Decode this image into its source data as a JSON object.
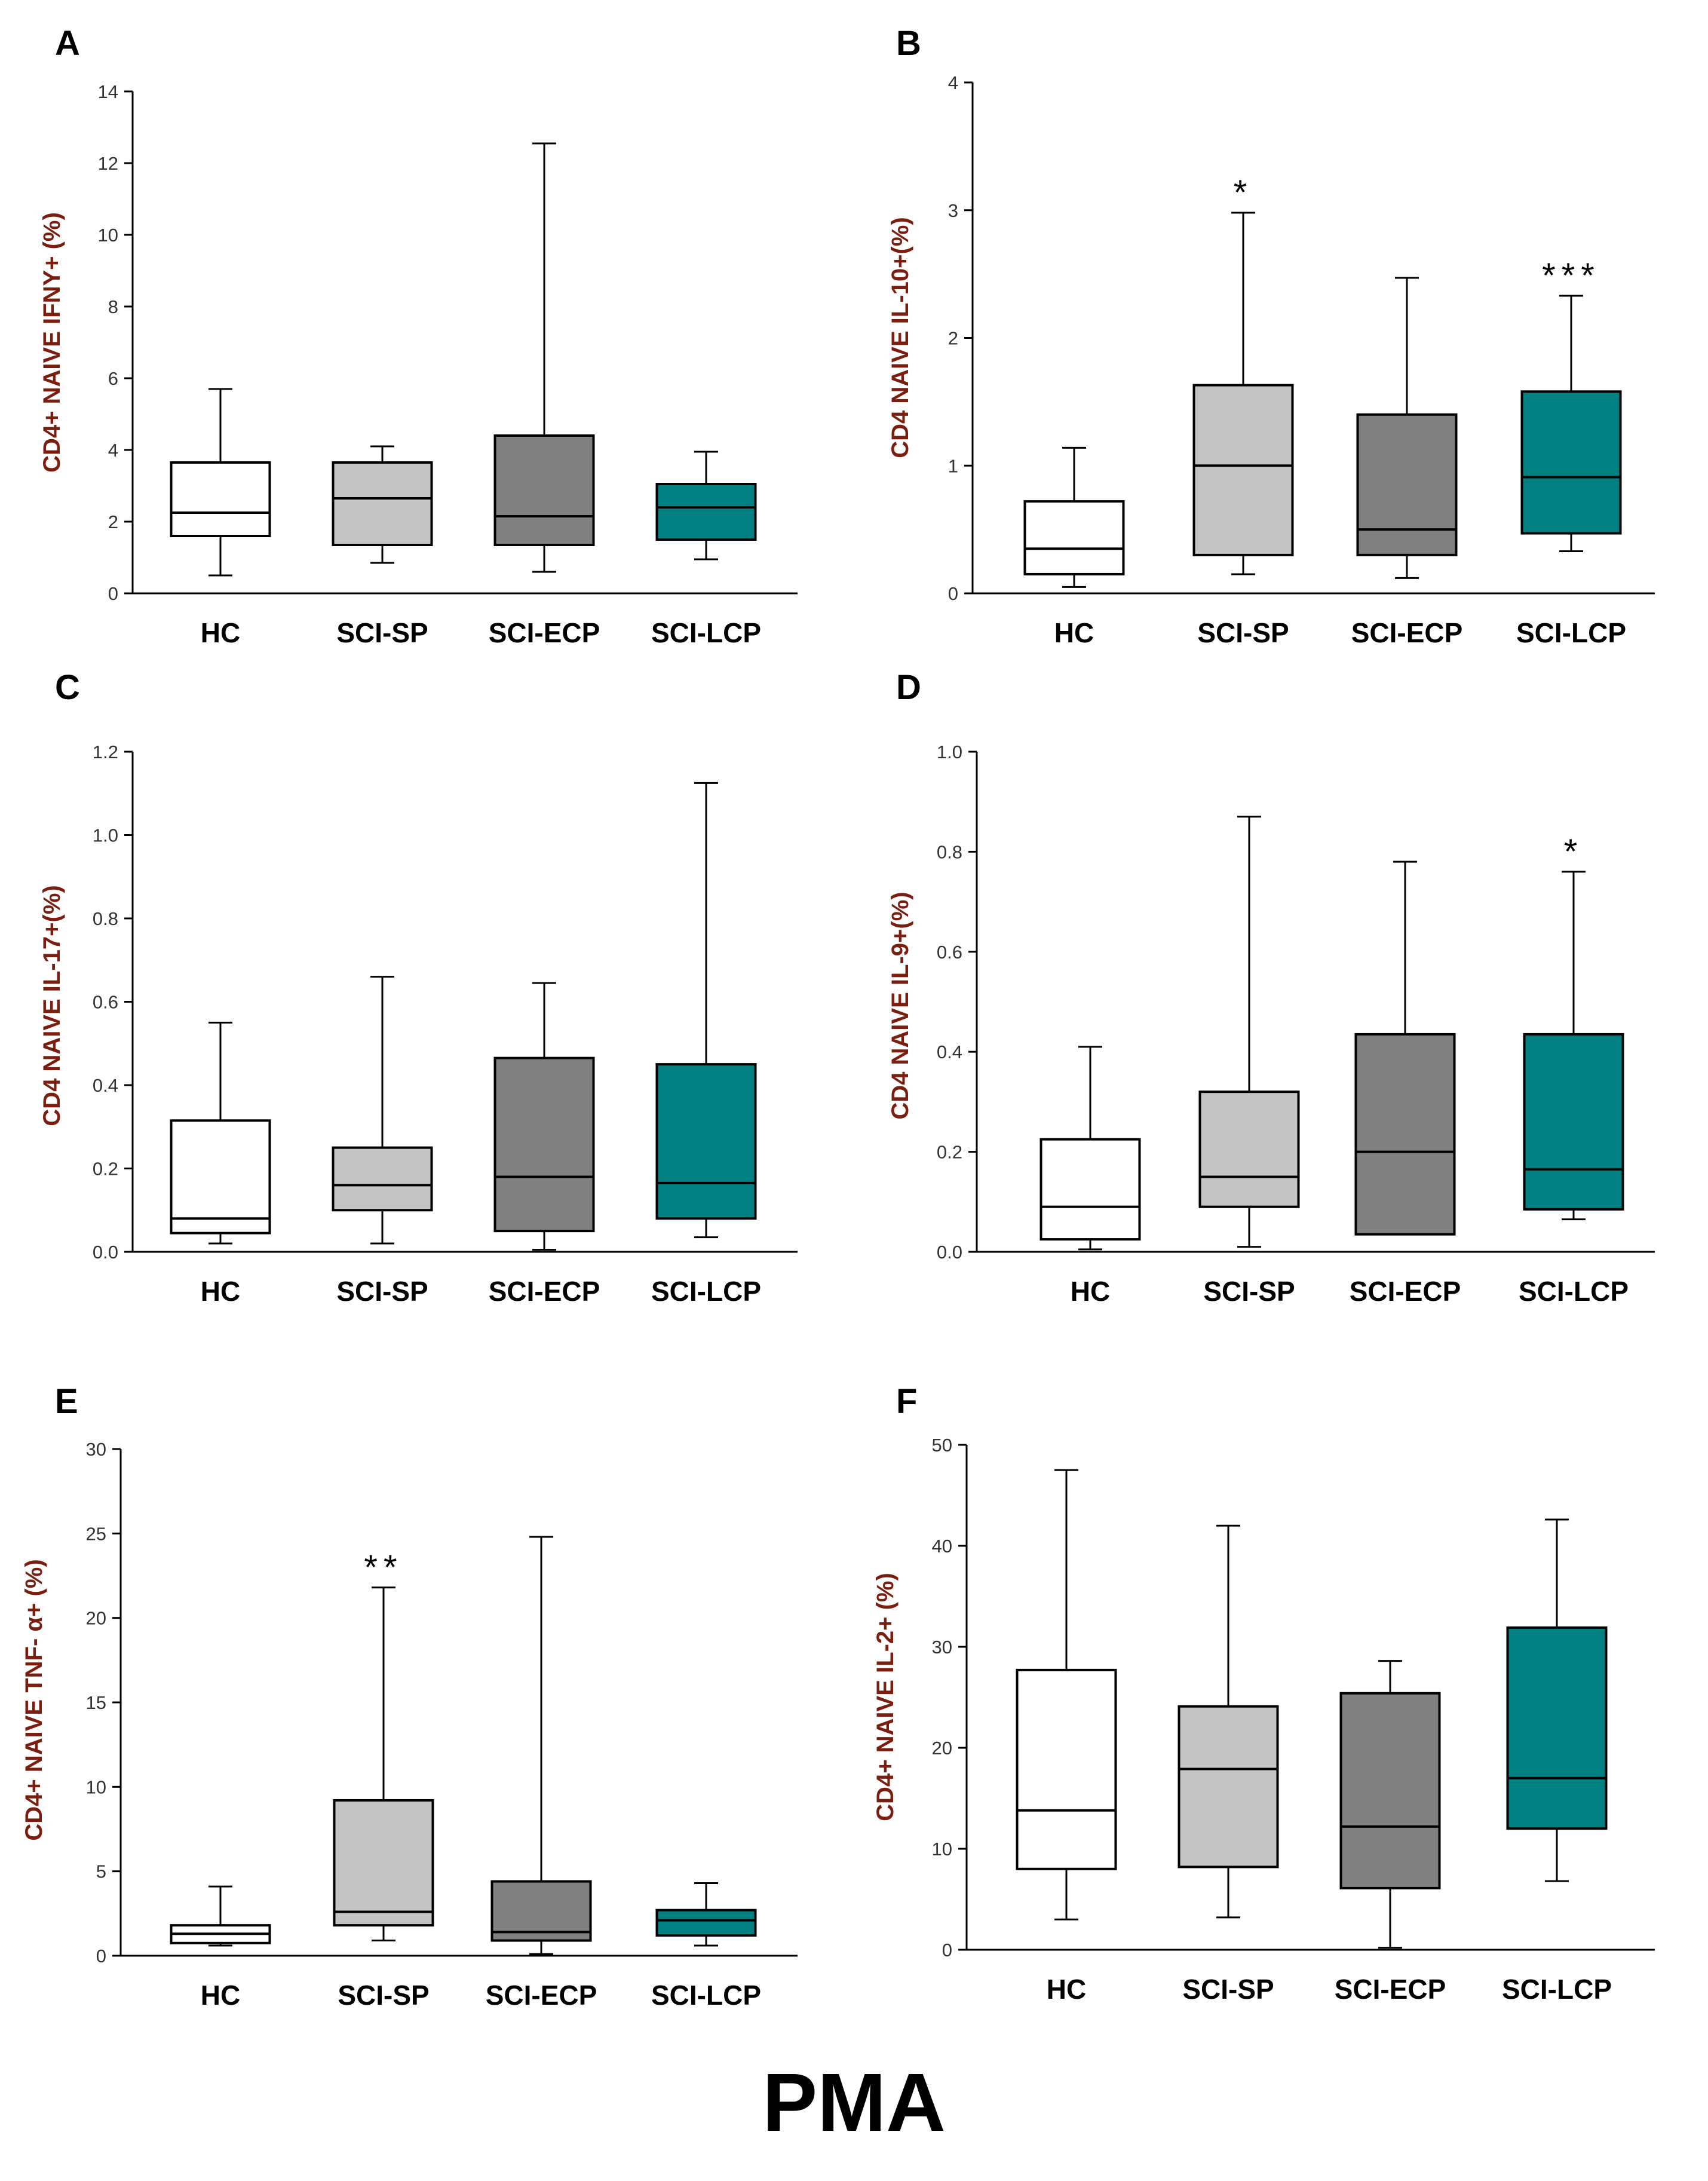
{
  "figure_title": "PMA",
  "colors": {
    "HC": "#ffffff",
    "SCI-SP": "#c4c4c4",
    "SCI-ECP": "#808080",
    "SCI-LCP": "#008080",
    "ylabel": "#7a1f10",
    "tick_label": "#333333",
    "stroke": "#000000"
  },
  "chart_data": [
    {
      "panel": "A",
      "type": "box",
      "ylabel": "CD4+ NAIVE IFNY+ (%)",
      "ylim": [
        0,
        14
      ],
      "yticks": [
        "0",
        "2",
        "4",
        "6",
        "8",
        "10",
        "12",
        "14"
      ],
      "categories": [
        "HC",
        "SCI-SP",
        "SCI-ECP",
        "SCI-LCP"
      ],
      "boxes": [
        {
          "min": 0.5,
          "q1": 1.6,
          "median": 2.25,
          "q3": 3.65,
          "max": 5.7
        },
        {
          "min": 0.85,
          "q1": 1.35,
          "median": 2.65,
          "q3": 3.65,
          "max": 4.1
        },
        {
          "min": 0.6,
          "q1": 1.35,
          "median": 2.15,
          "q3": 4.4,
          "max": 12.55
        },
        {
          "min": 0.95,
          "q1": 1.5,
          "median": 2.4,
          "q3": 3.05,
          "max": 3.95
        }
      ],
      "annotations": [
        "",
        "",
        "",
        ""
      ]
    },
    {
      "panel": "B",
      "type": "box",
      "ylabel": "CD4 NAIVE IL-10+(%)",
      "ylim": [
        0,
        4
      ],
      "yticks": [
        "0",
        "1",
        "2",
        "3",
        "4"
      ],
      "categories": [
        "HC",
        "SCI-SP",
        "SCI-ECP",
        "SCI-LCP"
      ],
      "boxes": [
        {
          "min": 0.05,
          "q1": 0.15,
          "median": 0.35,
          "q3": 0.72,
          "max": 1.14
        },
        {
          "min": 0.15,
          "q1": 0.3,
          "median": 1.0,
          "q3": 1.63,
          "max": 2.98
        },
        {
          "min": 0.12,
          "q1": 0.3,
          "median": 0.5,
          "q3": 1.4,
          "max": 2.47
        },
        {
          "min": 0.33,
          "q1": 0.47,
          "median": 0.91,
          "q3": 1.58,
          "max": 2.33
        }
      ],
      "annotations": [
        "",
        "*",
        "",
        "***"
      ]
    },
    {
      "panel": "C",
      "type": "box",
      "ylabel": "CD4 NAIVE IL-17+(%)",
      "ylim": [
        0,
        1.2
      ],
      "yticks": [
        "0.0",
        "0.2",
        "0.4",
        "0.6",
        "0.8",
        "1.0",
        "1.2"
      ],
      "categories": [
        "HC",
        "SCI-SP",
        "SCI-ECP",
        "SCI-LCP"
      ],
      "boxes": [
        {
          "min": 0.02,
          "q1": 0.045,
          "median": 0.08,
          "q3": 0.315,
          "max": 0.55
        },
        {
          "min": 0.02,
          "q1": 0.1,
          "median": 0.16,
          "q3": 0.25,
          "max": 0.66
        },
        {
          "min": 0.005,
          "q1": 0.05,
          "median": 0.18,
          "q3": 0.465,
          "max": 0.645
        },
        {
          "min": 0.035,
          "q1": 0.08,
          "median": 0.165,
          "q3": 0.45,
          "max": 1.125
        }
      ],
      "annotations": [
        "",
        "",
        "",
        ""
      ]
    },
    {
      "panel": "D",
      "type": "box",
      "ylabel": "CD4 NAIVE IL-9+(%)",
      "ylim": [
        0,
        1.0
      ],
      "yticks": [
        "0.0",
        "0.2",
        "0.4",
        "0.6",
        "0.8",
        "1.0"
      ],
      "categories": [
        "HC",
        "SCI-SP",
        "SCI-ECP",
        "SCI-LCP"
      ],
      "boxes": [
        {
          "min": 0.005,
          "q1": 0.025,
          "median": 0.09,
          "q3": 0.225,
          "max": 0.41
        },
        {
          "min": 0.01,
          "q1": 0.09,
          "median": 0.15,
          "q3": 0.32,
          "max": 0.87
        },
        {
          "min": 0.035,
          "q1": 0.035,
          "median": 0.2,
          "q3": 0.435,
          "max": 0.78
        },
        {
          "min": 0.065,
          "q1": 0.085,
          "median": 0.165,
          "q3": 0.435,
          "max": 0.76
        }
      ],
      "annotations": [
        "",
        "",
        "",
        "*"
      ]
    },
    {
      "panel": "E",
      "type": "box",
      "ylabel": "CD4+ NAIVE TNF- α+ (%)",
      "ylim": [
        0,
        30
      ],
      "yticks": [
        "0",
        "5",
        "10",
        "15",
        "20",
        "25",
        "30"
      ],
      "categories": [
        "HC",
        "SCI-SP",
        "SCI-ECP",
        "SCI-LCP"
      ],
      "boxes": [
        {
          "min": 0.6,
          "q1": 0.75,
          "median": 1.3,
          "q3": 1.8,
          "max": 4.1
        },
        {
          "min": 0.9,
          "q1": 1.8,
          "median": 2.6,
          "q3": 9.2,
          "max": 21.8
        },
        {
          "min": 0.1,
          "q1": 0.9,
          "median": 1.4,
          "q3": 4.4,
          "max": 24.8
        },
        {
          "min": 0.6,
          "q1": 1.2,
          "median": 2.1,
          "q3": 2.7,
          "max": 4.3
        }
      ],
      "annotations": [
        "",
        "**",
        "",
        ""
      ]
    },
    {
      "panel": "F",
      "type": "box",
      "ylabel": "CD4+ NAIVE IL-2+ (%)",
      "ylim": [
        0,
        50
      ],
      "yticks": [
        "0",
        "10",
        "20",
        "30",
        "40",
        "50"
      ],
      "categories": [
        "HC",
        "SCI-SP",
        "SCI-ECP",
        "SCI-LCP"
      ],
      "boxes": [
        {
          "min": 3.0,
          "q1": 8.0,
          "median": 13.8,
          "q3": 27.7,
          "max": 47.5
        },
        {
          "min": 3.2,
          "q1": 8.2,
          "median": 17.9,
          "q3": 24.1,
          "max": 42.0
        },
        {
          "min": 0.2,
          "q1": 6.1,
          "median": 12.2,
          "q3": 25.4,
          "max": 28.6
        },
        {
          "min": 6.8,
          "q1": 12.0,
          "median": 17.0,
          "q3": 31.9,
          "max": 42.6
        }
      ],
      "annotations": [
        "",
        "",
        "",
        ""
      ]
    }
  ]
}
